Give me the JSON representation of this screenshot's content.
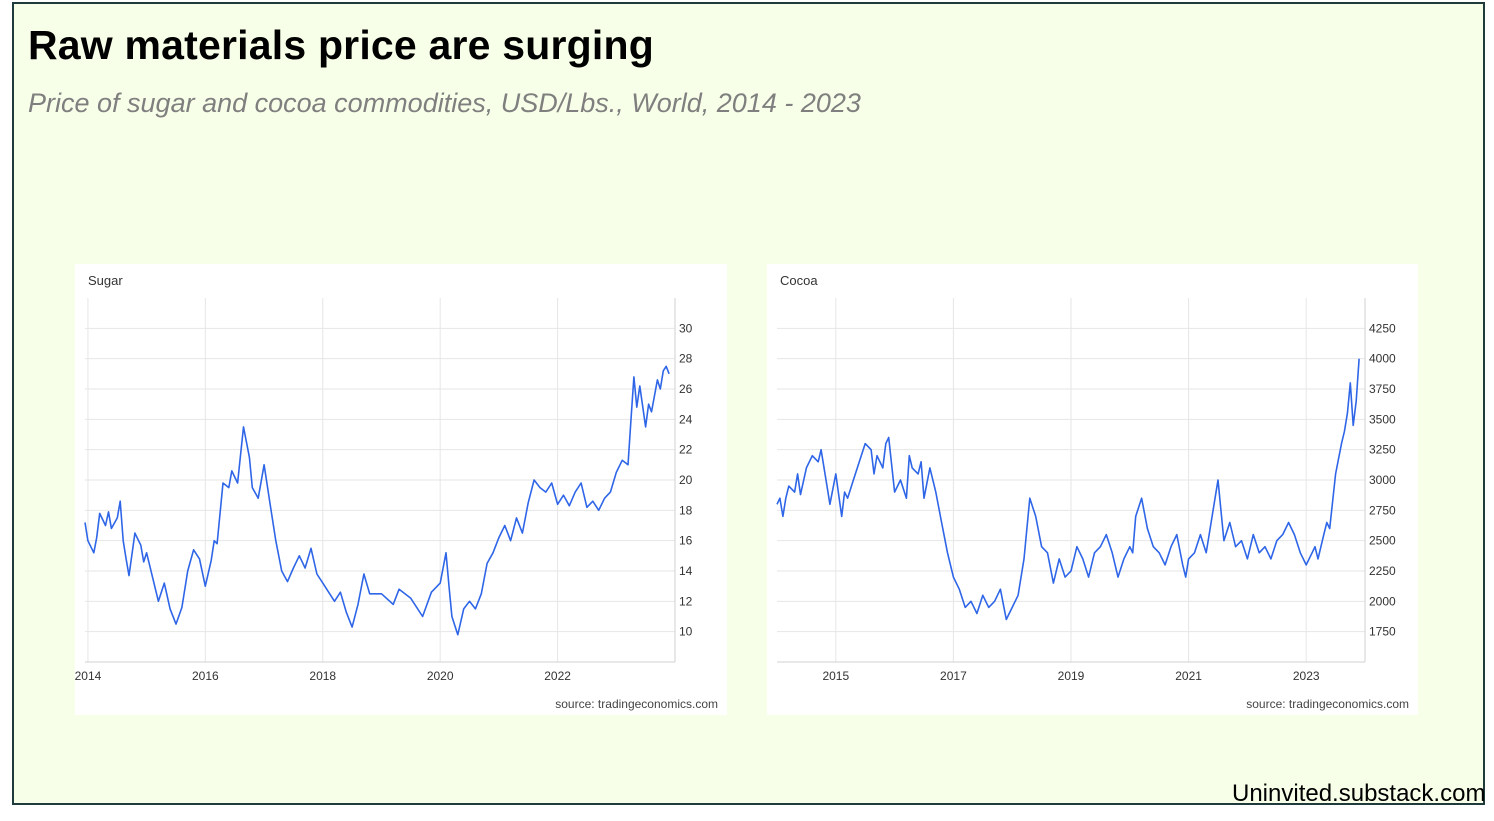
{
  "slide": {
    "title": "Raw materials price are surging",
    "subtitle": "Price of sugar and cocoa commodities, USD/Lbs., World, 2014 - 2023",
    "footer": "Uninvited.substack.com"
  },
  "chart_data": [
    {
      "type": "line",
      "title": "Sugar",
      "source": "source: tradingeconomics.com",
      "line_color": "#2f66e8",
      "grid": true,
      "xlim": [
        2013.95,
        2024.0
      ],
      "ylim": [
        8,
        32
      ],
      "xticks": [
        2014,
        2016,
        2018,
        2020,
        2022
      ],
      "yticks": [
        10,
        12,
        14,
        16,
        18,
        20,
        22,
        24,
        26,
        28,
        30
      ],
      "y_axis_side": "right",
      "series": [
        {
          "x": [
            2013.95,
            2014.0,
            2014.1,
            2014.15,
            2014.2,
            2014.3,
            2014.35,
            2014.4,
            2014.5,
            2014.55,
            2014.6,
            2014.65,
            2014.7,
            2014.8,
            2014.9,
            2014.95,
            2015.0,
            2015.1,
            2015.2,
            2015.3,
            2015.4,
            2015.5,
            2015.6,
            2015.65,
            2015.7,
            2015.8,
            2015.9,
            2016.0,
            2016.1,
            2016.15,
            2016.2,
            2016.3,
            2016.4,
            2016.45,
            2016.55,
            2016.65,
            2016.75,
            2016.8,
            2016.9,
            2017.0,
            2017.1,
            2017.2,
            2017.3,
            2017.4,
            2017.5,
            2017.6,
            2017.7,
            2017.8,
            2017.9,
            2018.0,
            2018.2,
            2018.3,
            2018.4,
            2018.5,
            2018.6,
            2018.7,
            2018.8,
            2019.0,
            2019.2,
            2019.3,
            2019.5,
            2019.7,
            2019.85,
            2020.0,
            2020.1,
            2020.15,
            2020.2,
            2020.3,
            2020.4,
            2020.5,
            2020.6,
            2020.7,
            2020.8,
            2020.9,
            2021.0,
            2021.1,
            2021.2,
            2021.3,
            2021.4,
            2021.5,
            2021.6,
            2021.7,
            2021.8,
            2021.9,
            2022.0,
            2022.1,
            2022.2,
            2022.3,
            2022.4,
            2022.5,
            2022.6,
            2022.7,
            2022.8,
            2022.9,
            2023.0,
            2023.1,
            2023.2,
            2023.25,
            2023.3,
            2023.35,
            2023.4,
            2023.5,
            2023.55,
            2023.6,
            2023.7,
            2023.75,
            2023.8,
            2023.85,
            2023.9
          ],
          "values": [
            17.2,
            16.0,
            15.2,
            16.2,
            17.8,
            17.0,
            17.9,
            16.8,
            17.5,
            18.6,
            16.0,
            14.8,
            13.7,
            16.5,
            15.7,
            14.6,
            15.2,
            13.6,
            12.0,
            13.2,
            11.5,
            10.5,
            11.6,
            12.8,
            14.0,
            15.4,
            14.8,
            13.0,
            14.7,
            16.0,
            15.8,
            19.8,
            19.5,
            20.6,
            19.8,
            23.5,
            21.5,
            19.5,
            18.8,
            21.0,
            18.5,
            16.0,
            14.0,
            13.3,
            14.2,
            15.0,
            14.2,
            15.5,
            13.8,
            13.2,
            12.0,
            12.6,
            11.3,
            10.3,
            11.8,
            13.8,
            12.5,
            12.5,
            11.8,
            12.8,
            12.2,
            11.0,
            12.6,
            13.2,
            15.2,
            13.0,
            11.0,
            9.8,
            11.5,
            12.0,
            11.5,
            12.5,
            14.5,
            15.2,
            16.2,
            17.0,
            16.0,
            17.5,
            16.5,
            18.5,
            20.0,
            19.5,
            19.2,
            19.8,
            18.4,
            19.0,
            18.3,
            19.2,
            19.8,
            18.2,
            18.6,
            18.0,
            18.8,
            19.2,
            20.5,
            21.3,
            21.0,
            24.0,
            26.8,
            24.8,
            26.2,
            23.5,
            25.0,
            24.5,
            26.6,
            26.0,
            27.2,
            27.5,
            27.0
          ]
        }
      ]
    },
    {
      "type": "line",
      "title": "Cocoa",
      "source": "source: tradingeconomics.com",
      "line_color": "#2f66e8",
      "grid": true,
      "xlim": [
        2014.0,
        2024.0
      ],
      "ylim": [
        1500,
        4500
      ],
      "xticks": [
        2015,
        2017,
        2019,
        2021,
        2023
      ],
      "yticks": [
        1750,
        2000,
        2250,
        2500,
        2750,
        3000,
        3250,
        3500,
        3750,
        4000,
        4250
      ],
      "y_axis_side": "right",
      "series": [
        {
          "x": [
            2014.0,
            2014.05,
            2014.1,
            2014.15,
            2014.2,
            2014.3,
            2014.35,
            2014.4,
            2014.5,
            2014.6,
            2014.7,
            2014.75,
            2014.85,
            2014.9,
            2015.0,
            2015.1,
            2015.15,
            2015.2,
            2015.3,
            2015.4,
            2015.5,
            2015.6,
            2015.65,
            2015.7,
            2015.8,
            2015.85,
            2015.9,
            2016.0,
            2016.1,
            2016.2,
            2016.25,
            2016.3,
            2016.4,
            2016.45,
            2016.5,
            2016.6,
            2016.7,
            2016.8,
            2016.9,
            2017.0,
            2017.1,
            2017.2,
            2017.3,
            2017.4,
            2017.5,
            2017.6,
            2017.7,
            2017.8,
            2017.9,
            2018.0,
            2018.1,
            2018.2,
            2018.3,
            2018.4,
            2018.5,
            2018.6,
            2018.7,
            2018.8,
            2018.9,
            2019.0,
            2019.1,
            2019.2,
            2019.3,
            2019.4,
            2019.5,
            2019.6,
            2019.7,
            2019.8,
            2019.9,
            2020.0,
            2020.05,
            2020.1,
            2020.2,
            2020.3,
            2020.4,
            2020.5,
            2020.6,
            2020.7,
            2020.8,
            2020.9,
            2020.95,
            2021.0,
            2021.1,
            2021.2,
            2021.3,
            2021.4,
            2021.5,
            2021.6,
            2021.7,
            2021.8,
            2021.9,
            2022.0,
            2022.1,
            2022.2,
            2022.3,
            2022.4,
            2022.5,
            2022.6,
            2022.7,
            2022.8,
            2022.9,
            2023.0,
            2023.1,
            2023.15,
            2023.2,
            2023.3,
            2023.35,
            2023.4,
            2023.5,
            2023.6,
            2023.65,
            2023.7,
            2023.75,
            2023.8,
            2023.85,
            2023.9
          ],
          "values": [
            2800,
            2850,
            2700,
            2850,
            2950,
            2900,
            3050,
            2880,
            3100,
            3200,
            3150,
            3250,
            2950,
            2800,
            3050,
            2700,
            2900,
            2850,
            3000,
            3150,
            3300,
            3250,
            3050,
            3200,
            3100,
            3300,
            3350,
            2900,
            3000,
            2850,
            3200,
            3100,
            3050,
            3150,
            2850,
            3100,
            2900,
            2650,
            2400,
            2200,
            2100,
            1950,
            2000,
            1900,
            2050,
            1950,
            2000,
            2100,
            1850,
            1950,
            2050,
            2350,
            2850,
            2700,
            2450,
            2400,
            2150,
            2350,
            2200,
            2250,
            2450,
            2350,
            2200,
            2400,
            2450,
            2550,
            2400,
            2200,
            2350,
            2450,
            2400,
            2700,
            2850,
            2600,
            2450,
            2400,
            2300,
            2450,
            2550,
            2300,
            2200,
            2350,
            2400,
            2550,
            2400,
            2700,
            3000,
            2500,
            2650,
            2450,
            2500,
            2350,
            2550,
            2400,
            2450,
            2350,
            2500,
            2550,
            2650,
            2550,
            2400,
            2300,
            2400,
            2450,
            2350,
            2550,
            2650,
            2600,
            3050,
            3300,
            3400,
            3550,
            3800,
            3450,
            3650,
            4000
          ]
        }
      ]
    }
  ]
}
